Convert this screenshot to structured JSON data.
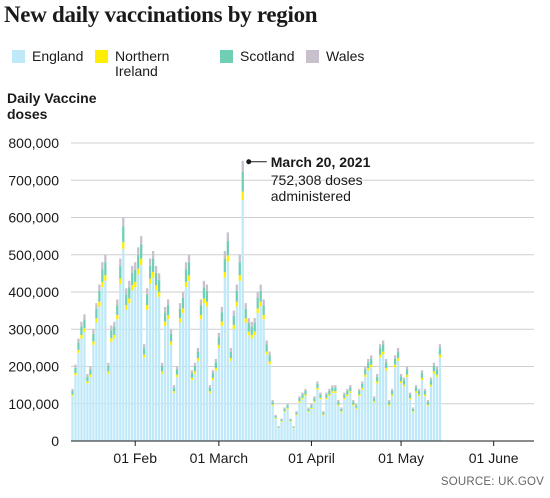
{
  "title": "New daily vaccinations by region",
  "legend": [
    {
      "label": "England",
      "color": "#bfe9f9"
    },
    {
      "label": "Northern\nIreland",
      "color": "#ffee00"
    },
    {
      "label": "Scotland",
      "color": "#6fcfb5"
    },
    {
      "label": "Wales",
      "color": "#c8c0cc"
    }
  ],
  "source": "SOURCE: UK.GOV",
  "chart_data": {
    "type": "bar",
    "stacked": true,
    "ylabel": "Daily Vaccine\ndoses",
    "ylim": [
      0,
      800000
    ],
    "yticks": [
      "0",
      "100,000",
      "200,000",
      "300,000",
      "400,000",
      "500,000",
      "600,000",
      "700,000",
      "800,000"
    ],
    "ytick_values": [
      0,
      100000,
      200000,
      300000,
      400000,
      500000,
      600000,
      700000,
      800000
    ],
    "grid": true,
    "x_start": "2021-01-11",
    "x_end": "2021-06-14",
    "xticks": [
      {
        "label": "01 Feb",
        "date": "2021-02-01"
      },
      {
        "label": "01 March",
        "date": "2021-03-01"
      },
      {
        "label": "01 April",
        "date": "2021-04-01"
      },
      {
        "label": "01 May",
        "date": "2021-05-01"
      },
      {
        "label": "01 June",
        "date": "2021-06-01"
      }
    ],
    "series": [
      {
        "name": "England",
        "color": "#bfe9f9",
        "share": 0.86
      },
      {
        "name": "Northern Ireland",
        "color": "#ffee00",
        "share": 0.03
      },
      {
        "name": "Scotland",
        "color": "#6fcfb5",
        "share": 0.07
      },
      {
        "name": "Wales",
        "color": "#c8c0cc",
        "share": 0.04
      }
    ],
    "totals": [
      140000,
      205000,
      275000,
      320000,
      340000,
      180000,
      200000,
      300000,
      370000,
      420000,
      480000,
      500000,
      210000,
      310000,
      320000,
      380000,
      490000,
      600000,
      410000,
      430000,
      470000,
      480000,
      520000,
      550000,
      260000,
      410000,
      490000,
      510000,
      470000,
      450000,
      210000,
      360000,
      380000,
      300000,
      150000,
      200000,
      370000,
      400000,
      480000,
      500000,
      190000,
      210000,
      250000,
      380000,
      430000,
      420000,
      150000,
      190000,
      220000,
      290000,
      360000,
      510000,
      560000,
      250000,
      350000,
      420000,
      500000,
      752308,
      370000,
      330000,
      320000,
      330000,
      400000,
      420000,
      380000,
      270000,
      240000,
      110000,
      70000,
      40000,
      60000,
      90000,
      100000,
      60000,
      40000,
      80000,
      120000,
      130000,
      140000,
      90000,
      100000,
      120000,
      160000,
      130000,
      80000,
      130000,
      140000,
      150000,
      150000,
      110000,
      90000,
      130000,
      140000,
      150000,
      110000,
      100000,
      140000,
      160000,
      200000,
      220000,
      230000,
      120000,
      180000,
      260000,
      270000,
      220000,
      110000,
      140000,
      230000,
      250000,
      180000,
      170000,
      200000,
      130000,
      90000,
      150000,
      140000,
      190000,
      140000,
      110000,
      170000,
      210000,
      200000,
      260000
    ],
    "annotation": {
      "date": "March 20, 2021",
      "text": "752,308 doses\nadministered",
      "value": 752308,
      "day_index": 57
    }
  }
}
